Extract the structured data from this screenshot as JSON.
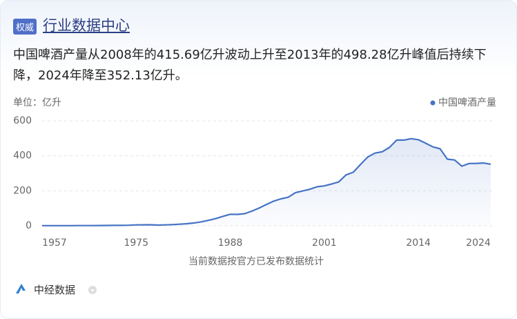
{
  "header": {
    "badge": "权威",
    "title": "行业数据中心"
  },
  "summary": "中国啤酒产量从2008年的415.69亿升波动上升至2013年的498.28亿升峰值后持续下降，2024年降至352.13亿升。",
  "chart_data": {
    "type": "line",
    "y_label": "单位：亿升",
    "x_label": "当前数据按官方已发布数据统计",
    "categories": [
      "1957",
      null,
      null,
      null,
      null,
      null,
      null,
      null,
      null,
      null,
      null,
      null,
      null,
      "1975",
      null,
      null,
      null,
      null,
      null,
      null,
      null,
      null,
      null,
      null,
      null,
      null,
      "1988",
      null,
      null,
      null,
      null,
      null,
      null,
      null,
      null,
      null,
      null,
      null,
      null,
      "2001",
      null,
      null,
      null,
      null,
      null,
      null,
      null,
      null,
      null,
      null,
      null,
      null,
      "2014",
      null,
      null,
      null,
      null,
      null,
      null,
      null,
      null,
      null,
      "2024"
    ],
    "series": [
      {
        "name": "中国啤酒产量",
        "color": "#4472c4",
        "values": [
          0.6,
          0.8,
          0.9,
          0.7,
          0.8,
          1.0,
          1.2,
          1.3,
          1.5,
          1.8,
          2.2,
          2.5,
          3.0,
          5,
          5.5,
          6,
          4.0,
          5.2,
          6.9,
          9.1,
          11.9,
          16.3,
          22.5,
          31,
          41,
          54,
          66,
          65,
          69,
          84,
          102,
          122,
          141,
          154,
          163,
          189,
          199,
          209,
          223,
          228,
          239,
          251,
          291,
          306,
          351,
          393,
          415.69,
          423,
          448,
          490,
          490,
          498.28,
          492,
          472,
          451,
          440,
          381,
          376,
          341,
          356,
          357,
          359,
          352.13
        ]
      }
    ],
    "ylim": [
      0,
      600
    ],
    "yticks": [
      0,
      200,
      400,
      600
    ],
    "grid": true,
    "legend": "top-right"
  },
  "footer": {
    "source": "中经数据"
  }
}
